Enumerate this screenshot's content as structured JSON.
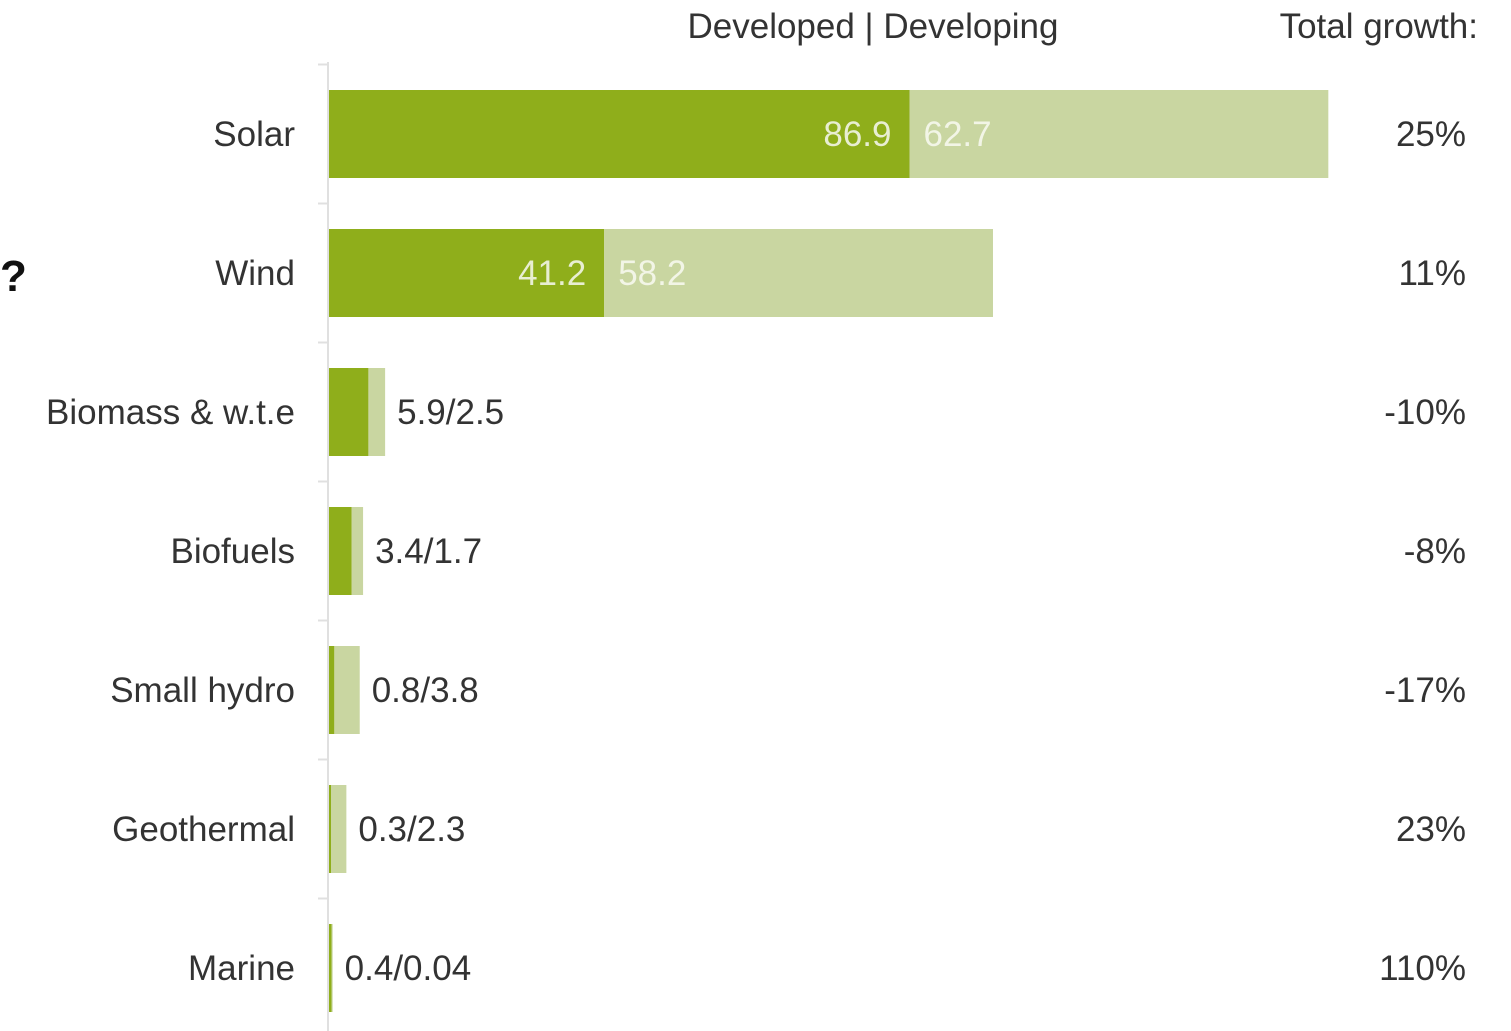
{
  "chart_data": {
    "type": "bar",
    "orientation": "horizontal",
    "stacked": true,
    "header": "Developed | Developing",
    "growth_header": "Total growth:",
    "categories": [
      "Solar",
      "Wind",
      "Biomass & w.t.e",
      "Biofuels",
      "Small hydro",
      "Geothermal",
      "Marine"
    ],
    "series": [
      {
        "name": "Developed",
        "values": [
          86.9,
          41.2,
          5.9,
          3.4,
          0.8,
          0.3,
          0.4
        ]
      },
      {
        "name": "Developing",
        "values": [
          62.7,
          58.2,
          2.5,
          1.7,
          3.8,
          2.3,
          0.04
        ]
      }
    ],
    "value_labels": [
      "",
      "",
      "5.9/2.5",
      "3.4/1.7",
      "0.8/3.8",
      "0.3/2.3",
      "0.4/0.04"
    ],
    "growth": [
      "25%",
      "11%",
      "-10%",
      "-8%",
      "-17%",
      "23%",
      "110%"
    ],
    "colors": {
      "developed": "#8fae1b",
      "developing": "#c9d6a1"
    },
    "annotation": "?",
    "grid": false,
    "legend": "none"
  }
}
